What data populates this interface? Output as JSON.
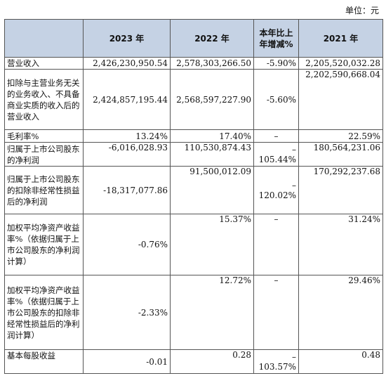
{
  "unit_label": "单位：元",
  "headers": {
    "item": "",
    "y2023": "2023 年",
    "y2022": "2022 年",
    "change": "本年比上年增减%",
    "y2021": "2021 年"
  },
  "rows": [
    {
      "label": "营业收入",
      "y2023": "2,426,230,950.54",
      "y2022": "2,578,303,266.50",
      "change": "-5.90%",
      "y2021": "2,205,520,032.28"
    },
    {
      "label": "扣除与主营业务无关的业务收入、不具备商业实质的收入后的营业收入",
      "y2023": "2,424,857,195.44",
      "y2022": "2,568,597,227.90",
      "change": "-5.60%",
      "y2021": "2,202,590,668.04"
    },
    {
      "label": "毛利率%",
      "y2023": "13.24%",
      "y2022": "17.40%",
      "change": "–",
      "y2021": "22.59%"
    },
    {
      "label": "归属于上市公司股东的净利润",
      "y2023": "-6,016,028.93",
      "y2022": "110,530,874.43",
      "change_dash": "–",
      "change": "105.44%",
      "y2021": "180,564,231.06"
    },
    {
      "label": "归属于上市公司股东的扣除非经常性损益后的净利润",
      "y2023": "-18,317,077.86",
      "y2022": "91,500,012.09",
      "change_dash": "–",
      "change": "120.02%",
      "y2021": "170,292,237.68"
    },
    {
      "label": "加权平均净资产收益率%（依据归属于上市公司股东的净利润计算）",
      "y2023": "-0.76%",
      "y2022": "15.37%",
      "change": "–",
      "y2021": "31.24%"
    },
    {
      "label": "加权平均净资产收益率%（依据归属于上市公司股东的扣除非经常性损益后的净利润计算）",
      "y2023": "-2.33%",
      "y2022": "12.72%",
      "change": "–",
      "y2021": "29.46%"
    },
    {
      "label": "基本每股收益",
      "y2023": "-0.01",
      "y2022": "0.28",
      "change_dash": "–",
      "change": "103.57%",
      "y2021": "0.48"
    }
  ]
}
